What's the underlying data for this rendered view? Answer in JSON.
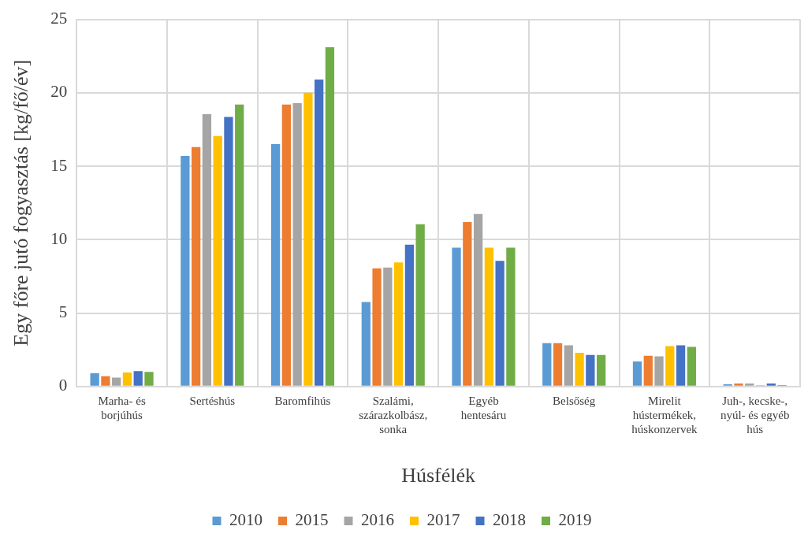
{
  "chart_data": {
    "type": "bar",
    "xlabel": "Húsfélék",
    "ylabel": "Egy főre jutó fogyasztás [kg/fő/év]",
    "categories": [
      "Marha- és borjúhús",
      "Sertéshús",
      "Baromfihús",
      "Szalámi, szárazkolbász, sonka",
      "Egyéb hentesáru",
      "Belsőség",
      "Mirelit hústermékek, húskonzervek",
      "Juh-, kecske-, nyúl- és egyéb hús"
    ],
    "series": [
      {
        "name": "2010",
        "color": "#5b9bd5",
        "values": [
          0.9,
          15.7,
          16.5,
          5.75,
          9.45,
          2.95,
          1.7,
          0.15
        ]
      },
      {
        "name": "2015",
        "color": "#ed7d31",
        "values": [
          0.7,
          16.3,
          19.2,
          8.05,
          11.2,
          2.95,
          2.1,
          0.2
        ]
      },
      {
        "name": "2016",
        "color": "#a5a5a5",
        "values": [
          0.6,
          18.55,
          19.3,
          8.1,
          11.75,
          2.8,
          2.05,
          0.2
        ]
      },
      {
        "name": "2017",
        "color": "#ffc000",
        "values": [
          0.95,
          17.05,
          20.0,
          8.45,
          9.45,
          2.3,
          2.75,
          0.1
        ]
      },
      {
        "name": "2018",
        "color": "#4472c4",
        "values": [
          1.05,
          18.35,
          20.9,
          9.65,
          8.55,
          2.15,
          2.8,
          0.2
        ]
      },
      {
        "name": "2019",
        "color": "#70ad47",
        "values": [
          1.0,
          19.2,
          23.1,
          11.05,
          9.45,
          2.15,
          2.7,
          0.1
        ]
      }
    ],
    "ylim": [
      0,
      25
    ],
    "yticks": [
      0,
      5,
      10,
      15,
      20,
      25
    ],
    "grid": true,
    "legend": "bottom"
  }
}
